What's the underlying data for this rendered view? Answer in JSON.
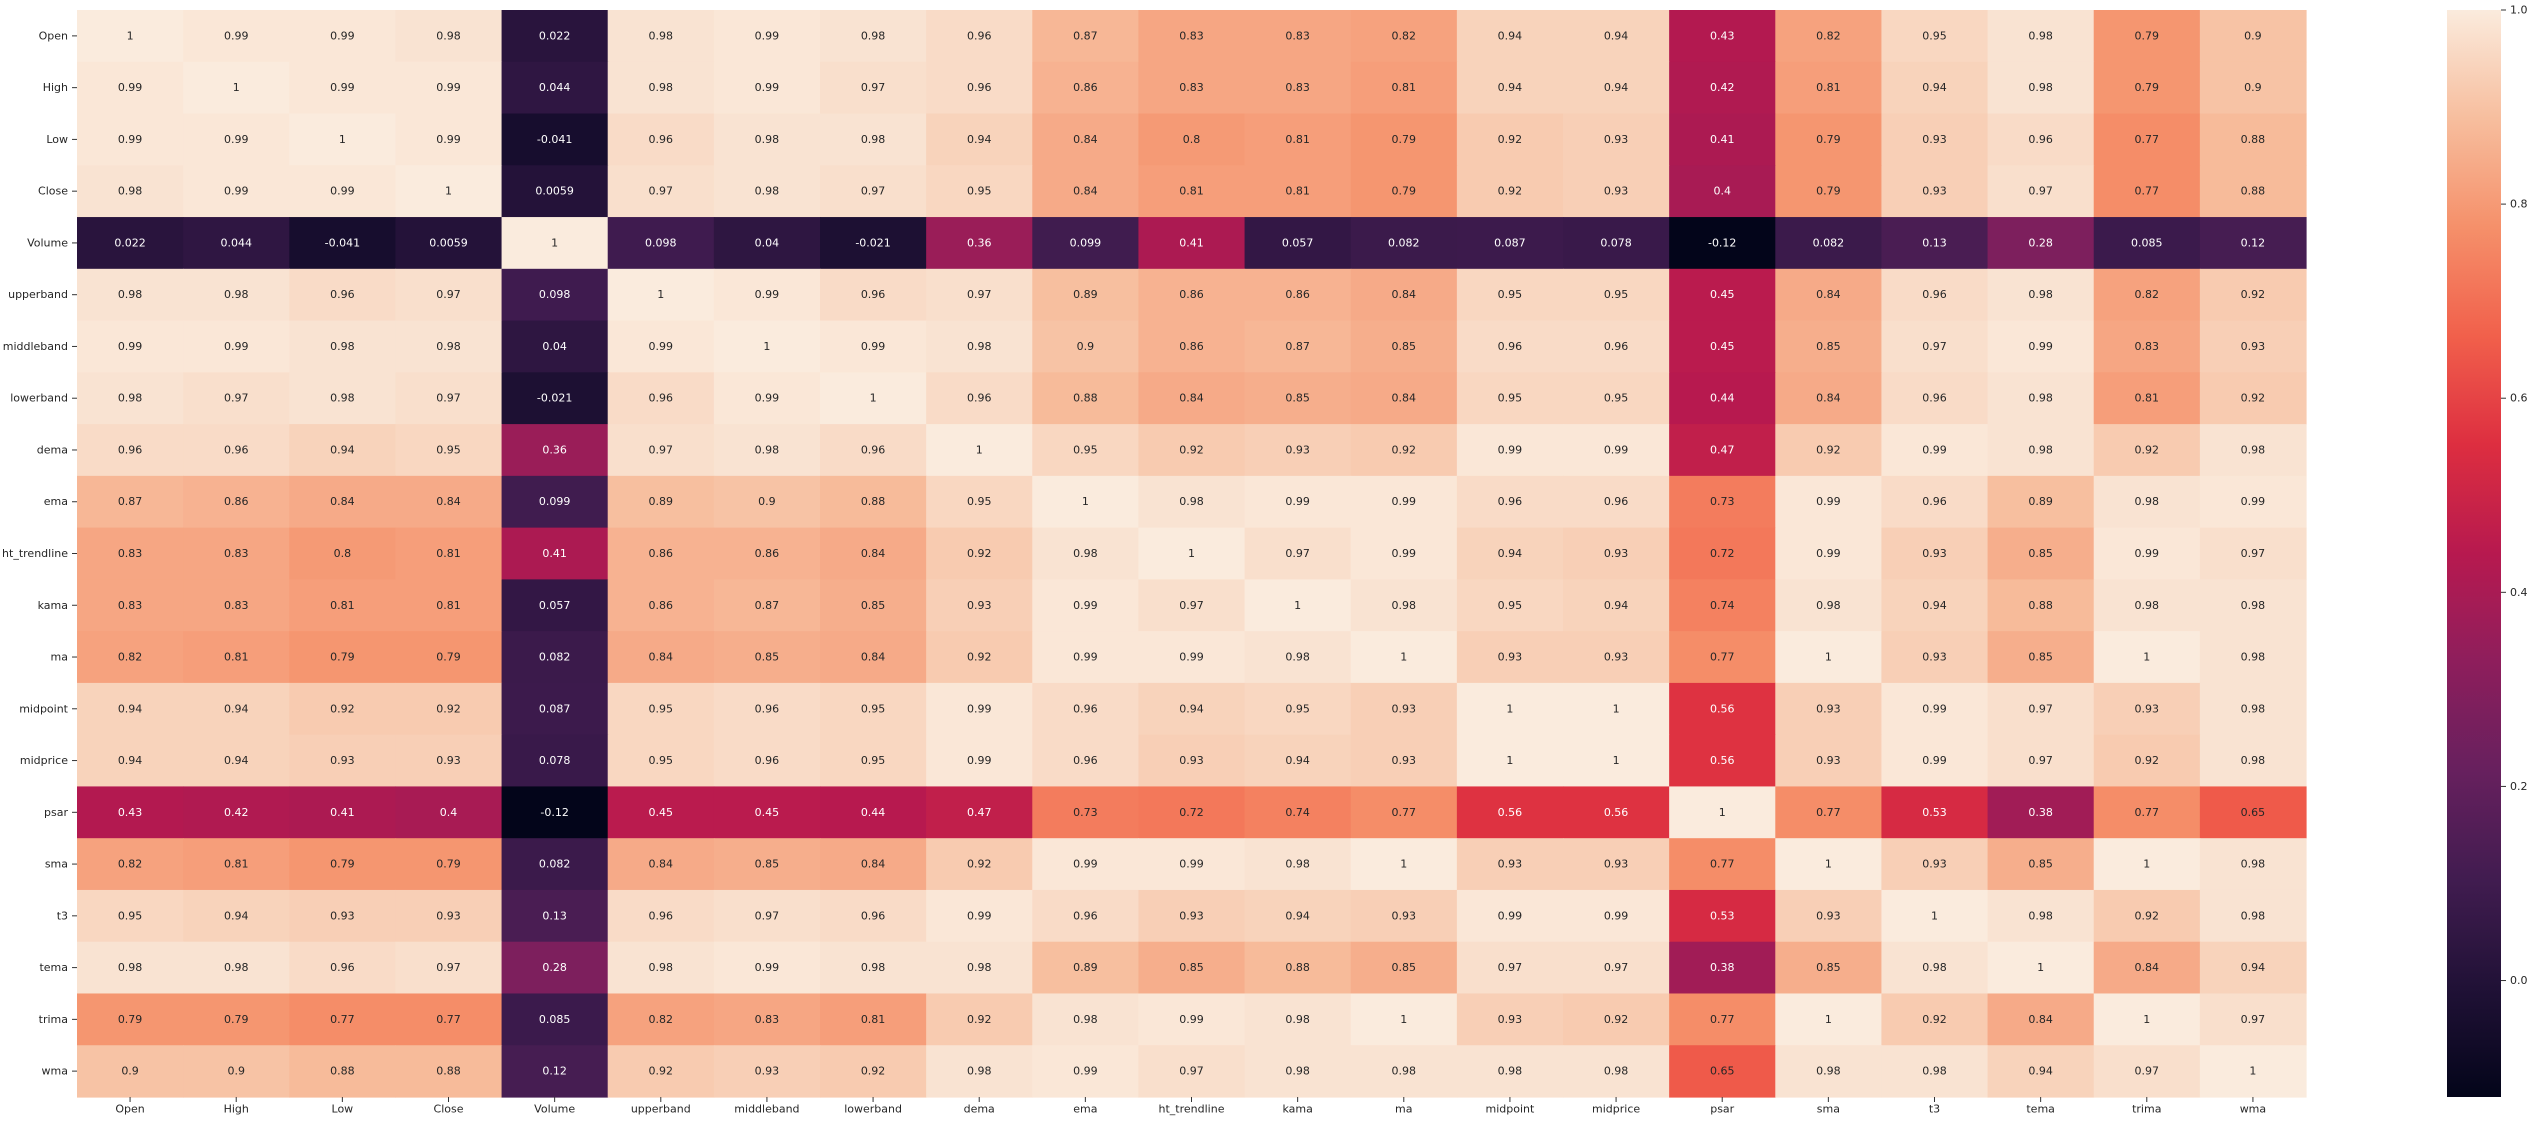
{
  "chart_data": {
    "type": "heatmap",
    "title": "",
    "xlabel": "",
    "ylabel": "",
    "labels": [
      "Open",
      "High",
      "Low",
      "Close",
      "Volume",
      "upperband",
      "middleband",
      "lowerband",
      "dema",
      "ema",
      "ht_trendline",
      "kama",
      "ma",
      "midpoint",
      "midprice",
      "psar",
      "sma",
      "t3",
      "tema",
      "trima",
      "wma"
    ],
    "matrix": [
      [
        "1",
        "0.99",
        "0.99",
        "0.98",
        "0.022",
        "0.98",
        "0.99",
        "0.98",
        "0.96",
        "0.87",
        "0.83",
        "0.83",
        "0.82",
        "0.94",
        "0.94",
        "0.43",
        "0.82",
        "0.95",
        "0.98",
        "0.79",
        "0.9"
      ],
      [
        "0.99",
        "1",
        "0.99",
        "0.99",
        "0.044",
        "0.98",
        "0.99",
        "0.97",
        "0.96",
        "0.86",
        "0.83",
        "0.83",
        "0.81",
        "0.94",
        "0.94",
        "0.42",
        "0.81",
        "0.94",
        "0.98",
        "0.79",
        "0.9"
      ],
      [
        "0.99",
        "0.99",
        "1",
        "0.99",
        "-0.041",
        "0.96",
        "0.98",
        "0.98",
        "0.94",
        "0.84",
        "0.8",
        "0.81",
        "0.79",
        "0.92",
        "0.93",
        "0.41",
        "0.79",
        "0.93",
        "0.96",
        "0.77",
        "0.88"
      ],
      [
        "0.98",
        "0.99",
        "0.99",
        "1",
        "0.0059",
        "0.97",
        "0.98",
        "0.97",
        "0.95",
        "0.84",
        "0.81",
        "0.81",
        "0.79",
        "0.92",
        "0.93",
        "0.4",
        "0.79",
        "0.93",
        "0.97",
        "0.77",
        "0.88"
      ],
      [
        "0.022",
        "0.044",
        "-0.041",
        "0.0059",
        "1",
        "0.098",
        "0.04",
        "-0.021",
        "0.36",
        "0.099",
        "0.41",
        "0.057",
        "0.082",
        "0.087",
        "0.078",
        "-0.12",
        "0.082",
        "0.13",
        "0.28",
        "0.085",
        "0.12"
      ],
      [
        "0.98",
        "0.98",
        "0.96",
        "0.97",
        "0.098",
        "1",
        "0.99",
        "0.96",
        "0.97",
        "0.89",
        "0.86",
        "0.86",
        "0.84",
        "0.95",
        "0.95",
        "0.45",
        "0.84",
        "0.96",
        "0.98",
        "0.82",
        "0.92"
      ],
      [
        "0.99",
        "0.99",
        "0.98",
        "0.98",
        "0.04",
        "0.99",
        "1",
        "0.99",
        "0.98",
        "0.9",
        "0.86",
        "0.87",
        "0.85",
        "0.96",
        "0.96",
        "0.45",
        "0.85",
        "0.97",
        "0.99",
        "0.83",
        "0.93"
      ],
      [
        "0.98",
        "0.97",
        "0.98",
        "0.97",
        "-0.021",
        "0.96",
        "0.99",
        "1",
        "0.96",
        "0.88",
        "0.84",
        "0.85",
        "0.84",
        "0.95",
        "0.95",
        "0.44",
        "0.84",
        "0.96",
        "0.98",
        "0.81",
        "0.92"
      ],
      [
        "0.96",
        "0.96",
        "0.94",
        "0.95",
        "0.36",
        "0.97",
        "0.98",
        "0.96",
        "1",
        "0.95",
        "0.92",
        "0.93",
        "0.92",
        "0.99",
        "0.99",
        "0.47",
        "0.92",
        "0.99",
        "0.98",
        "0.92",
        "0.98"
      ],
      [
        "0.87",
        "0.86",
        "0.84",
        "0.84",
        "0.099",
        "0.89",
        "0.9",
        "0.88",
        "0.95",
        "1",
        "0.98",
        "0.99",
        "0.99",
        "0.96",
        "0.96",
        "0.73",
        "0.99",
        "0.96",
        "0.89",
        "0.98",
        "0.99"
      ],
      [
        "0.83",
        "0.83",
        "0.8",
        "0.81",
        "0.41",
        "0.86",
        "0.86",
        "0.84",
        "0.92",
        "0.98",
        "1",
        "0.97",
        "0.99",
        "0.94",
        "0.93",
        "0.72",
        "0.99",
        "0.93",
        "0.85",
        "0.99",
        "0.97"
      ],
      [
        "0.83",
        "0.83",
        "0.81",
        "0.81",
        "0.057",
        "0.86",
        "0.87",
        "0.85",
        "0.93",
        "0.99",
        "0.97",
        "1",
        "0.98",
        "0.95",
        "0.94",
        "0.74",
        "0.98",
        "0.94",
        "0.88",
        "0.98",
        "0.98"
      ],
      [
        "0.82",
        "0.81",
        "0.79",
        "0.79",
        "0.082",
        "0.84",
        "0.85",
        "0.84",
        "0.92",
        "0.99",
        "0.99",
        "0.98",
        "1",
        "0.93",
        "0.93",
        "0.77",
        "1",
        "0.93",
        "0.85",
        "1",
        "0.98"
      ],
      [
        "0.94",
        "0.94",
        "0.92",
        "0.92",
        "0.087",
        "0.95",
        "0.96",
        "0.95",
        "0.99",
        "0.96",
        "0.94",
        "0.95",
        "0.93",
        "1",
        "1",
        "0.56",
        "0.93",
        "0.99",
        "0.97",
        "0.93",
        "0.98"
      ],
      [
        "0.94",
        "0.94",
        "0.93",
        "0.93",
        "0.078",
        "0.95",
        "0.96",
        "0.95",
        "0.99",
        "0.96",
        "0.93",
        "0.94",
        "0.93",
        "1",
        "1",
        "0.56",
        "0.93",
        "0.99",
        "0.97",
        "0.92",
        "0.98"
      ],
      [
        "0.43",
        "0.42",
        "0.41",
        "0.4",
        "-0.12",
        "0.45",
        "0.45",
        "0.44",
        "0.47",
        "0.73",
        "0.72",
        "0.74",
        "0.77",
        "0.56",
        "0.56",
        "1",
        "0.77",
        "0.53",
        "0.38",
        "0.77",
        "0.65"
      ],
      [
        "0.82",
        "0.81",
        "0.79",
        "0.79",
        "0.082",
        "0.84",
        "0.85",
        "0.84",
        "0.92",
        "0.99",
        "0.99",
        "0.98",
        "1",
        "0.93",
        "0.93",
        "0.77",
        "1",
        "0.93",
        "0.85",
        "1",
        "0.98"
      ],
      [
        "0.95",
        "0.94",
        "0.93",
        "0.93",
        "0.13",
        "0.96",
        "0.97",
        "0.96",
        "0.99",
        "0.96",
        "0.93",
        "0.94",
        "0.93",
        "0.99",
        "0.99",
        "0.53",
        "0.93",
        "1",
        "0.98",
        "0.92",
        "0.98"
      ],
      [
        "0.98",
        "0.98",
        "0.96",
        "0.97",
        "0.28",
        "0.98",
        "0.99",
        "0.98",
        "0.98",
        "0.89",
        "0.85",
        "0.88",
        "0.85",
        "0.97",
        "0.97",
        "0.38",
        "0.85",
        "0.98",
        "1",
        "0.84",
        "0.94"
      ],
      [
        "0.79",
        "0.79",
        "0.77",
        "0.77",
        "0.085",
        "0.82",
        "0.83",
        "0.81",
        "0.92",
        "0.98",
        "0.99",
        "0.98",
        "1",
        "0.93",
        "0.92",
        "0.77",
        "1",
        "0.92",
        "0.84",
        "1",
        "0.97"
      ],
      [
        "0.9",
        "0.9",
        "0.88",
        "0.88",
        "0.12",
        "0.92",
        "0.93",
        "0.92",
        "0.98",
        "0.99",
        "0.97",
        "0.98",
        "0.98",
        "0.98",
        "0.98",
        "0.65",
        "0.98",
        "0.98",
        "0.94",
        "0.97",
        "1"
      ]
    ],
    "colorbar": {
      "colormap": "rocket",
      "vmin": -0.12,
      "vmax": 1.0,
      "ticks": [
        "0.0",
        "0.2",
        "0.4",
        "0.6",
        "0.8",
        "1.0"
      ]
    },
    "grid": false,
    "legend": "colorbar-right"
  }
}
